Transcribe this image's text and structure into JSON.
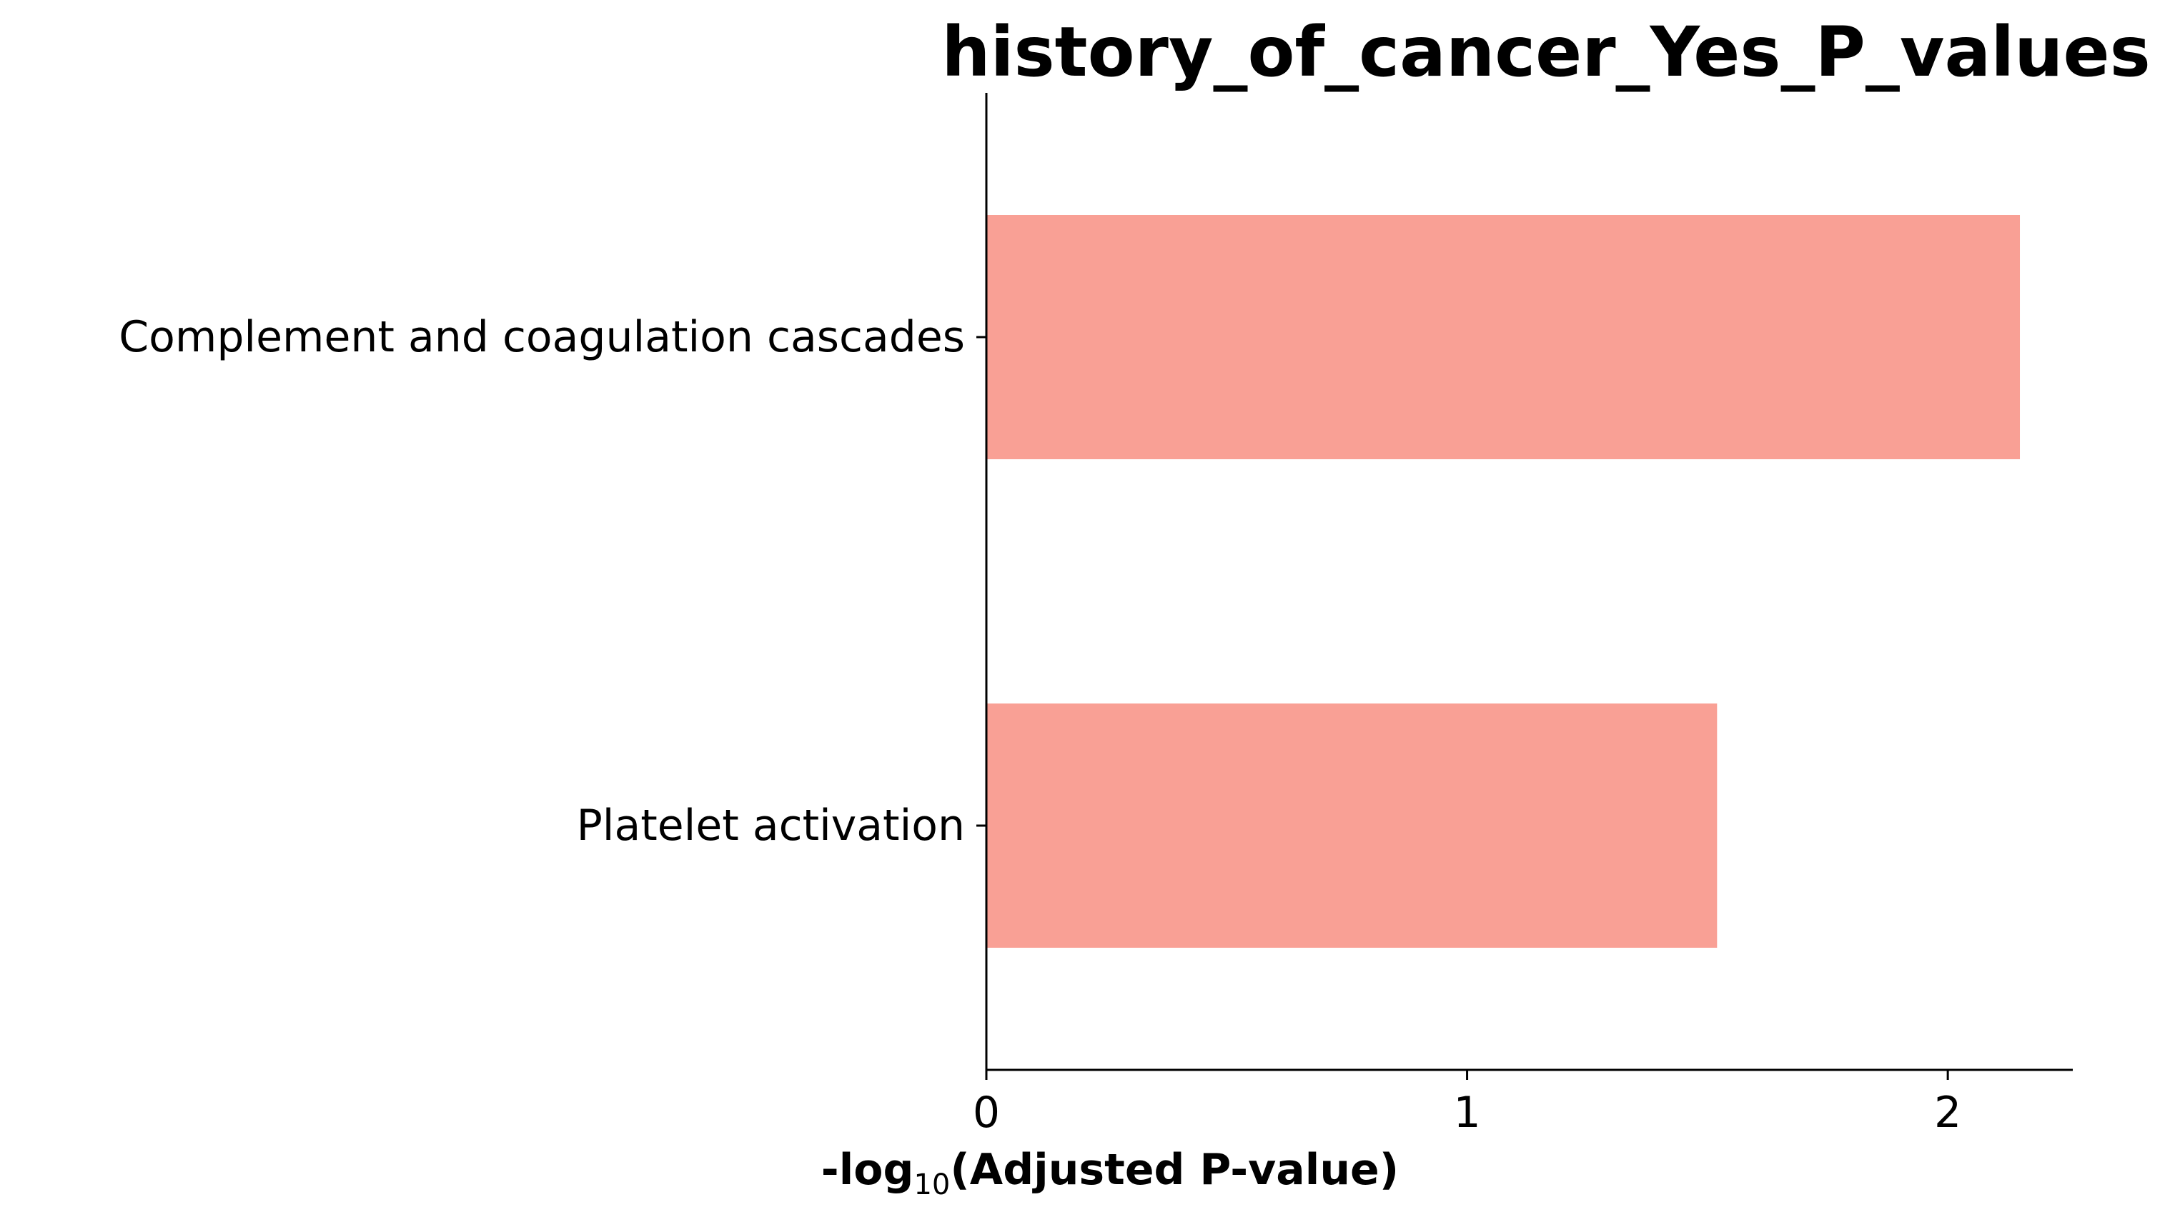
{
  "chart_data": {
    "type": "bar",
    "orientation": "horizontal",
    "title": "history_of_cancer_Yes_P_values",
    "categories": [
      "Complement and coagulation cascades",
      "Platelet activation"
    ],
    "values": [
      2.15,
      1.52
    ],
    "xlabel": {
      "prefix": "-log",
      "subscript": "10",
      "suffix": "(Adjusted P-value)"
    },
    "ylabel": "",
    "xlim": [
      0,
      2.26
    ],
    "xticks": [
      0,
      1,
      2
    ],
    "xtick_labels": [
      "0",
      "1",
      "2"
    ],
    "grid": false,
    "legend": "none",
    "bar_color": "#f9a095",
    "axis_color": "#000000"
  }
}
